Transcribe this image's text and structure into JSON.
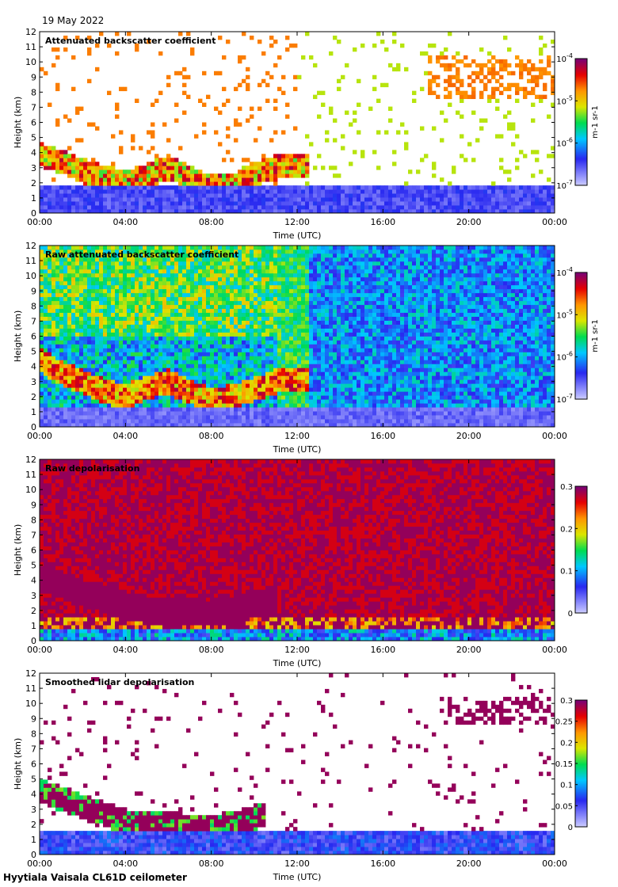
{
  "header": {
    "date": "19 May 2022"
  },
  "footer": {
    "site": "Hyytiala Vaisala CL61D ceilometer"
  },
  "chart_data": [
    {
      "type": "heatmap",
      "title": "Attenuated backscatter coefficient",
      "xlabel": "Time (UTC)",
      "ylabel": "Height (km)",
      "xticks": [
        "00:00",
        "04:00",
        "08:00",
        "12:00",
        "16:00",
        "20:00",
        "00:00"
      ],
      "yticks": [
        "0",
        "1",
        "2",
        "3",
        "4",
        "5",
        "6",
        "7",
        "8",
        "9",
        "10",
        "11",
        "12"
      ],
      "xlim_hours": [
        0,
        24
      ],
      "ylim_km": [
        0,
        12
      ],
      "colorbar": {
        "scale": "log",
        "ticks": [
          "10-7",
          "10-6",
          "10-5",
          "10-4"
        ],
        "unit": "m-1 sr-1"
      },
      "cloud_base_km": [
        [
          0,
          3.9
        ],
        [
          1,
          3.4
        ],
        [
          2,
          2.8
        ],
        [
          3,
          2.4
        ],
        [
          4,
          2.0
        ],
        [
          5,
          2.5
        ],
        [
          6,
          3.0
        ],
        [
          7,
          2.4
        ],
        [
          8,
          1.7
        ],
        [
          9,
          1.8
        ],
        [
          10,
          2.6
        ],
        [
          11,
          3.0
        ],
        [
          12,
          3.2
        ]
      ],
      "boundary_layer_top_km": [
        [
          0,
          1.8
        ],
        [
          12,
          1.8
        ],
        [
          24,
          1.8
        ]
      ]
    },
    {
      "type": "heatmap",
      "title": "Raw attenuated backscatter coefficient",
      "xlabel": "Time (UTC)",
      "ylabel": "Height (km)",
      "xticks": [
        "00:00",
        "04:00",
        "08:00",
        "12:00",
        "16:00",
        "20:00",
        "00:00"
      ],
      "yticks": [
        "0",
        "1",
        "2",
        "3",
        "4",
        "5",
        "6",
        "7",
        "8",
        "9",
        "10",
        "11",
        "12"
      ],
      "xlim_hours": [
        0,
        24
      ],
      "ylim_km": [
        0,
        12
      ],
      "colorbar": {
        "scale": "log",
        "ticks": [
          "10-7",
          "10-6",
          "10-5",
          "10-4"
        ],
        "unit": "m-1 sr-1"
      },
      "cloud_base_km": [
        [
          0,
          4.4
        ],
        [
          1,
          3.6
        ],
        [
          2,
          3.0
        ],
        [
          3,
          2.4
        ],
        [
          4,
          2.0
        ],
        [
          5,
          2.6
        ],
        [
          6,
          3.0
        ],
        [
          7,
          2.3
        ],
        [
          8,
          1.8
        ],
        [
          9,
          2.0
        ],
        [
          10,
          2.5
        ],
        [
          11,
          3.0
        ],
        [
          12,
          3.2
        ]
      ]
    },
    {
      "type": "heatmap",
      "title": "Raw depolarisation",
      "xlabel": "Time (UTC)",
      "ylabel": "Height (km)",
      "xticks": [
        "00:00",
        "04:00",
        "08:00",
        "12:00",
        "16:00",
        "20:00",
        "00:00"
      ],
      "yticks": [
        "0",
        "1",
        "2",
        "3",
        "4",
        "5",
        "6",
        "7",
        "8",
        "9",
        "10",
        "11",
        "12"
      ],
      "xlim_hours": [
        0,
        24
      ],
      "ylim_km": [
        0,
        12
      ],
      "colorbar": {
        "scale": "linear",
        "ticks": [
          "0",
          "0.1",
          "0.2",
          "0.3"
        ],
        "range": [
          0,
          0.3
        ]
      }
    },
    {
      "type": "heatmap",
      "title": "Smoothed lidar depolarisation",
      "xlabel": "Time (UTC)",
      "ylabel": "Height (km)",
      "xticks": [
        "00:00",
        "04:00",
        "08:00",
        "12:00",
        "16:00",
        "20:00",
        "00:00"
      ],
      "yticks": [
        "0",
        "1",
        "2",
        "3",
        "4",
        "5",
        "6",
        "7",
        "8",
        "9",
        "10",
        "11",
        "12"
      ],
      "xlim_hours": [
        0,
        24
      ],
      "ylim_km": [
        0,
        12
      ],
      "colorbar": {
        "scale": "linear",
        "ticks": [
          "0",
          "0.05",
          "0.1",
          "0.15",
          "0.2",
          "0.25",
          "0.3"
        ],
        "range": [
          0,
          0.3
        ]
      }
    }
  ]
}
